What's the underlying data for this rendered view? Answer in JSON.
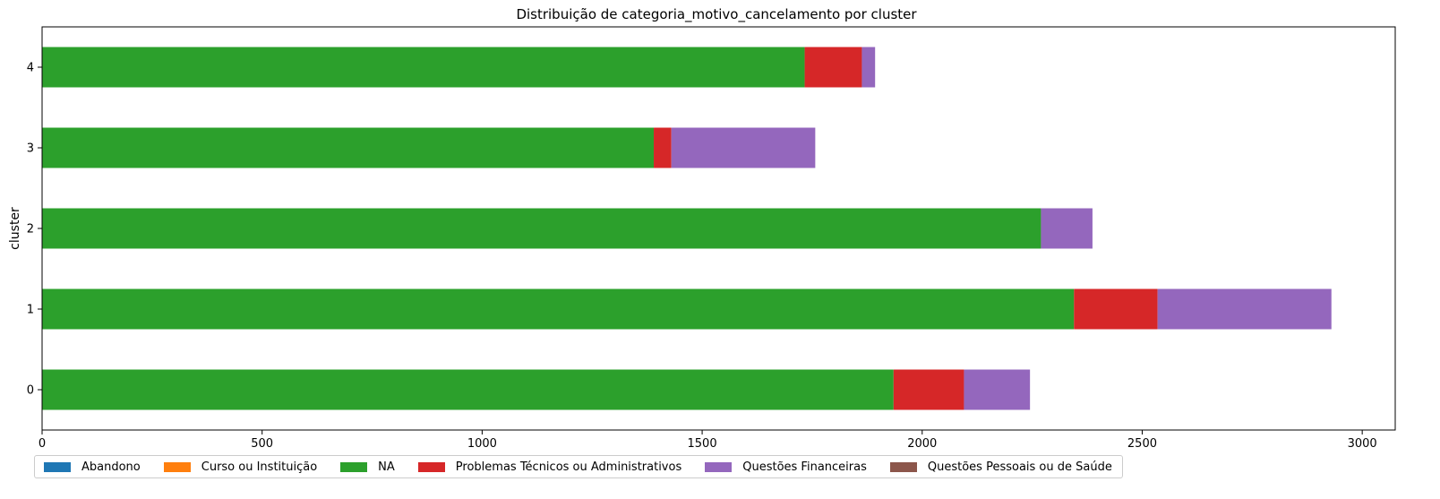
{
  "chart_data": {
    "type": "bar",
    "orientation": "horizontal",
    "stacked": true,
    "title": "Distribuição de categoria_motivo_cancelamento por cluster",
    "xlabel": "",
    "ylabel": "cluster",
    "categories": [
      "0",
      "1",
      "2",
      "3",
      "4"
    ],
    "xlim": [
      0,
      3075
    ],
    "xticks": [
      "0",
      "500",
      "1000",
      "1500",
      "2000",
      "2500",
      "3000"
    ],
    "grid": false,
    "legend_position": "bottom-left",
    "series": [
      {
        "name": "Abandono",
        "color": "#1f77b4",
        "values": [
          0,
          0,
          0,
          0,
          0
        ]
      },
      {
        "name": "Curso ou Instituição",
        "color": "#ff7f0e",
        "values": [
          0,
          0,
          0,
          0,
          0
        ]
      },
      {
        "name": "NA",
        "color": "#2ca02c",
        "values": [
          1935,
          2345,
          2270,
          1390,
          1733
        ]
      },
      {
        "name": "Problemas Técnicos ou Administrativos",
        "color": "#d62728",
        "values": [
          160,
          190,
          0,
          40,
          130
        ]
      },
      {
        "name": "Questões Financeiras",
        "color": "#9467bd",
        "values": [
          150,
          395,
          117,
          327,
          30
        ]
      },
      {
        "name": "Questões Pessoais ou de Saúde",
        "color": "#8c564b",
        "values": [
          0,
          0,
          0,
          0,
          0
        ]
      }
    ]
  }
}
